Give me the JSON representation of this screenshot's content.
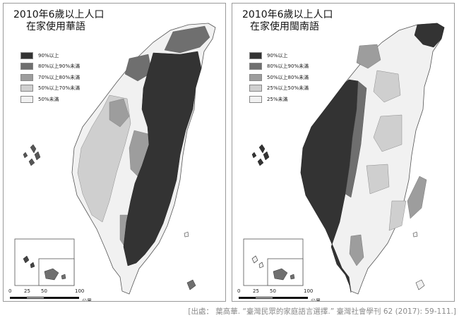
{
  "left_map": {
    "title_line1": "2010年6歲以上人口",
    "title_line2": "在家使用華語",
    "legend": [
      {
        "label": "90%以上",
        "color": "#333333"
      },
      {
        "label": "80%以上90%未滿",
        "color": "#6f6f6f"
      },
      {
        "label": "70%以上80%未滿",
        "color": "#9d9d9d"
      },
      {
        "label": "50%以上70%未滿",
        "color": "#cfcfcf"
      },
      {
        "label": "50%未滿",
        "color": "#f1f1f1"
      }
    ]
  },
  "right_map": {
    "title_line1": "2010年6歲以上人口",
    "title_line2": "在家使用閩南語",
    "legend": [
      {
        "label": "90%以上",
        "color": "#333333"
      },
      {
        "label": "80%以上90%未滿",
        "color": "#6f6f6f"
      },
      {
        "label": "50%以上80%未滿",
        "color": "#9d9d9d"
      },
      {
        "label": "25%以上50%未滿",
        "color": "#cfcfcf"
      },
      {
        "label": "25%未滿",
        "color": "#f1f1f1"
      }
    ]
  },
  "scale_bar": {
    "ticks": [
      "0",
      "25",
      "50",
      "100"
    ],
    "unit": "公里"
  },
  "source_text": "[出處： 葉高華. “臺灣民眾的家庭語言選擇.” 臺灣社會學刊 62 (2017): 59-111.]"
}
